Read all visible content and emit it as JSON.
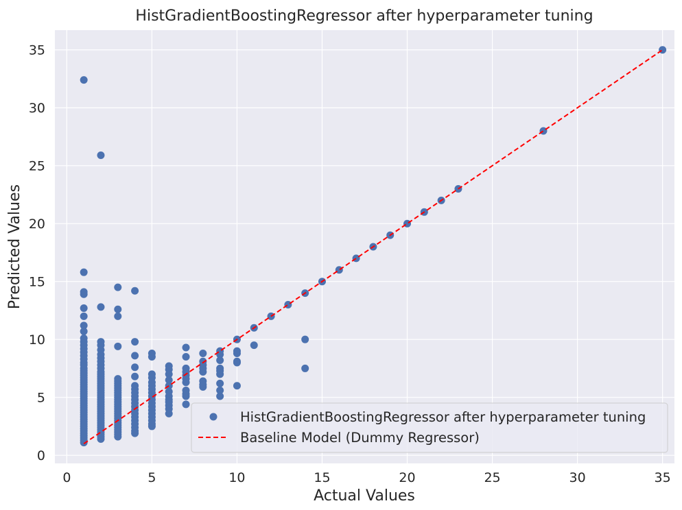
{
  "chart_data": {
    "type": "scatter",
    "title": "HistGradientBoostingRegressor after hyperparameter tuning",
    "xlabel": "Actual Values",
    "ylabel": "Predicted Values",
    "xlim": [
      -0.7,
      35.7
    ],
    "ylim": [
      -0.7,
      36.7
    ],
    "xticks": [
      0,
      5,
      10,
      15,
      20,
      25,
      30,
      35
    ],
    "yticks": [
      0,
      5,
      10,
      15,
      20,
      25,
      30,
      35
    ],
    "grid": true,
    "legend": "lower-right",
    "colors": {
      "scatter": "#4c72b0",
      "baseline": "#ff0000",
      "plot_bg": "#eaeaf2",
      "grid": "#ffffff"
    },
    "series": [
      {
        "name": "HistGradientBoostingRegressor after hyperparameter tuning",
        "kind": "scatter",
        "points": [
          [
            1,
            32.4
          ],
          [
            1,
            15.8
          ],
          [
            1,
            14.1
          ],
          [
            1,
            13.9
          ],
          [
            1,
            12.7
          ],
          [
            1,
            12.0
          ],
          [
            1,
            11.2
          ],
          [
            1,
            10.7
          ],
          [
            1,
            10.1
          ],
          [
            1,
            9.8
          ],
          [
            1,
            9.5
          ],
          [
            1,
            9.2
          ],
          [
            1,
            8.9
          ],
          [
            1,
            8.6
          ],
          [
            1,
            8.3
          ],
          [
            1,
            8.0
          ],
          [
            1,
            7.8
          ],
          [
            1,
            7.5
          ],
          [
            1,
            7.3
          ],
          [
            1,
            7.1
          ],
          [
            1,
            6.9
          ],
          [
            1,
            6.7
          ],
          [
            1,
            6.5
          ],
          [
            1,
            6.3
          ],
          [
            1,
            6.1
          ],
          [
            1,
            5.9
          ],
          [
            1,
            5.7
          ],
          [
            1,
            5.5
          ],
          [
            1,
            5.3
          ],
          [
            1,
            5.1
          ],
          [
            1,
            4.9
          ],
          [
            1,
            4.7
          ],
          [
            1,
            4.5
          ],
          [
            1,
            4.3
          ],
          [
            1,
            4.1
          ],
          [
            1,
            3.9
          ],
          [
            1,
            3.7
          ],
          [
            1,
            3.5
          ],
          [
            1,
            3.3
          ],
          [
            1,
            3.1
          ],
          [
            1,
            2.9
          ],
          [
            1,
            2.7
          ],
          [
            1,
            2.5
          ],
          [
            1,
            2.3
          ],
          [
            1,
            2.1
          ],
          [
            1,
            1.9
          ],
          [
            1,
            1.7
          ],
          [
            1,
            1.5
          ],
          [
            1,
            1.3
          ],
          [
            1,
            1.1
          ],
          [
            2,
            25.9
          ],
          [
            2,
            12.8
          ],
          [
            2,
            9.8
          ],
          [
            2,
            9.5
          ],
          [
            2,
            9.1
          ],
          [
            2,
            8.7
          ],
          [
            2,
            8.4
          ],
          [
            2,
            8.1
          ],
          [
            2,
            7.8
          ],
          [
            2,
            7.5
          ],
          [
            2,
            7.2
          ],
          [
            2,
            7.0
          ],
          [
            2,
            6.8
          ],
          [
            2,
            6.6
          ],
          [
            2,
            6.4
          ],
          [
            2,
            6.2
          ],
          [
            2,
            6.0
          ],
          [
            2,
            5.8
          ],
          [
            2,
            5.6
          ],
          [
            2,
            5.4
          ],
          [
            2,
            5.2
          ],
          [
            2,
            5.0
          ],
          [
            2,
            4.8
          ],
          [
            2,
            4.6
          ],
          [
            2,
            4.4
          ],
          [
            2,
            4.2
          ],
          [
            2,
            4.0
          ],
          [
            2,
            3.8
          ],
          [
            2,
            3.6
          ],
          [
            2,
            3.4
          ],
          [
            2,
            3.2
          ],
          [
            2,
            3.0
          ],
          [
            2,
            2.8
          ],
          [
            2,
            2.6
          ],
          [
            2,
            2.4
          ],
          [
            2,
            2.2
          ],
          [
            2,
            2.0
          ],
          [
            2,
            1.8
          ],
          [
            2,
            1.6
          ],
          [
            2,
            1.4
          ],
          [
            3,
            14.5
          ],
          [
            3,
            12.6
          ],
          [
            3,
            12.0
          ],
          [
            3,
            9.4
          ],
          [
            3,
            6.6
          ],
          [
            3,
            6.4
          ],
          [
            3,
            6.2
          ],
          [
            3,
            6.0
          ],
          [
            3,
            5.8
          ],
          [
            3,
            5.6
          ],
          [
            3,
            5.4
          ],
          [
            3,
            5.2
          ],
          [
            3,
            5.0
          ],
          [
            3,
            4.8
          ],
          [
            3,
            4.6
          ],
          [
            3,
            4.4
          ],
          [
            3,
            4.2
          ],
          [
            3,
            4.0
          ],
          [
            3,
            3.8
          ],
          [
            3,
            3.6
          ],
          [
            3,
            3.4
          ],
          [
            3,
            3.2
          ],
          [
            3,
            3.0
          ],
          [
            3,
            2.8
          ],
          [
            3,
            2.6
          ],
          [
            3,
            2.4
          ],
          [
            3,
            2.2
          ],
          [
            3,
            2.0
          ],
          [
            3,
            1.8
          ],
          [
            3,
            1.6
          ],
          [
            4,
            14.2
          ],
          [
            4,
            9.8
          ],
          [
            4,
            8.6
          ],
          [
            4,
            7.6
          ],
          [
            4,
            6.8
          ],
          [
            4,
            6.0
          ],
          [
            4,
            5.7
          ],
          [
            4,
            5.4
          ],
          [
            4,
            5.1
          ],
          [
            4,
            4.8
          ],
          [
            4,
            4.5
          ],
          [
            4,
            4.2
          ],
          [
            4,
            3.9
          ],
          [
            4,
            3.6
          ],
          [
            4,
            3.3
          ],
          [
            4,
            3.0
          ],
          [
            4,
            2.7
          ],
          [
            4,
            2.4
          ],
          [
            4,
            2.1
          ],
          [
            4,
            1.9
          ],
          [
            5,
            8.8
          ],
          [
            5,
            8.5
          ],
          [
            5,
            7.0
          ],
          [
            5,
            6.7
          ],
          [
            5,
            6.3
          ],
          [
            5,
            6.0
          ],
          [
            5,
            5.7
          ],
          [
            5,
            5.4
          ],
          [
            5,
            5.1
          ],
          [
            5,
            4.8
          ],
          [
            5,
            4.5
          ],
          [
            5,
            4.2
          ],
          [
            5,
            3.9
          ],
          [
            5,
            3.6
          ],
          [
            5,
            3.3
          ],
          [
            5,
            3.0
          ],
          [
            5,
            2.7
          ],
          [
            5,
            2.5
          ],
          [
            6,
            7.7
          ],
          [
            6,
            7.4
          ],
          [
            6,
            7.0
          ],
          [
            6,
            6.5
          ],
          [
            6,
            6.0
          ],
          [
            6,
            5.5
          ],
          [
            6,
            5.1
          ],
          [
            6,
            4.8
          ],
          [
            6,
            4.6
          ],
          [
            6,
            4.3
          ],
          [
            6,
            4.0
          ],
          [
            6,
            3.6
          ],
          [
            7,
            9.3
          ],
          [
            7,
            8.5
          ],
          [
            7,
            7.5
          ],
          [
            7,
            7.2
          ],
          [
            7,
            6.9
          ],
          [
            7,
            6.6
          ],
          [
            7,
            6.3
          ],
          [
            7,
            5.6
          ],
          [
            7,
            5.3
          ],
          [
            7,
            5.1
          ],
          [
            7,
            4.4
          ],
          [
            8,
            8.8
          ],
          [
            8,
            8.1
          ],
          [
            8,
            7.8
          ],
          [
            8,
            7.5
          ],
          [
            8,
            7.2
          ],
          [
            8,
            6.4
          ],
          [
            8,
            6.1
          ],
          [
            8,
            5.9
          ],
          [
            9,
            9.0
          ],
          [
            9,
            8.7
          ],
          [
            9,
            8.2
          ],
          [
            9,
            7.5
          ],
          [
            9,
            7.3
          ],
          [
            9,
            7.0
          ],
          [
            9,
            6.2
          ],
          [
            9,
            5.6
          ],
          [
            9,
            5.1
          ],
          [
            10,
            10.0
          ],
          [
            10,
            9.0
          ],
          [
            10,
            8.8
          ],
          [
            10,
            8.1
          ],
          [
            10,
            8.0
          ],
          [
            10,
            6.0
          ],
          [
            11,
            11.0
          ],
          [
            11,
            9.5
          ],
          [
            12,
            12.0
          ],
          [
            13,
            13.0
          ],
          [
            14,
            14.0
          ],
          [
            14,
            10.0
          ],
          [
            14,
            7.5
          ],
          [
            15,
            15.0
          ],
          [
            16,
            16.0
          ],
          [
            17,
            17.0
          ],
          [
            18,
            18.0
          ],
          [
            19,
            19.0
          ],
          [
            20,
            20.0
          ],
          [
            21,
            21.0
          ],
          [
            22,
            22.0
          ],
          [
            23,
            23.0
          ],
          [
            28,
            28.0
          ],
          [
            35,
            35.0
          ]
        ]
      },
      {
        "name": "Baseline Model (Dummy Regressor)",
        "kind": "line",
        "style": "dashed",
        "points": [
          [
            1,
            1
          ],
          [
            35,
            35
          ]
        ]
      }
    ]
  }
}
